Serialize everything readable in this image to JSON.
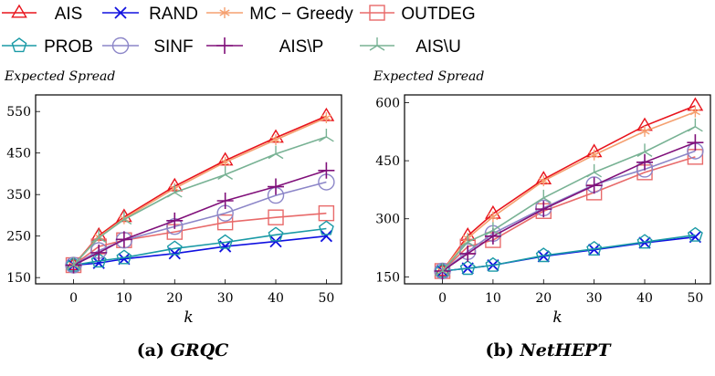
{
  "legend": [
    {
      "name": "AIS",
      "color": "#e8141c",
      "marker": "triangle"
    },
    {
      "name": "RAND",
      "color": "#1010e0",
      "marker": "x"
    },
    {
      "name": "MC − Greedy",
      "color": "#f5a070",
      "marker": "asterisk"
    },
    {
      "name": "OUTDEG",
      "color": "#e86a6a",
      "marker": "square"
    },
    {
      "name": "PROB",
      "color": "#1a9aa6",
      "marker": "pentagon"
    },
    {
      "name": "SINF",
      "color": "#8c86c8",
      "marker": "circle"
    },
    {
      "name": "AIS\\P",
      "color": "#80107a",
      "marker": "plus"
    },
    {
      "name": "AIS\\U",
      "color": "#78b294",
      "marker": "tri-y"
    }
  ],
  "chart_data": [
    {
      "type": "line",
      "caption_prefix": "(a)",
      "caption_name": "GRQC",
      "ylabel": "Expected Spread",
      "xlabel": "k",
      "x": [
        0,
        5,
        10,
        20,
        30,
        40,
        50
      ],
      "xticks": [
        0,
        10,
        20,
        30,
        40,
        50
      ],
      "yticks": [
        150,
        250,
        350,
        450,
        550
      ],
      "ylim": [
        135,
        590
      ],
      "xlim": [
        -7.5,
        53
      ],
      "grid": false,
      "legend_placement": "top",
      "series": [
        {
          "name": "AIS",
          "values": [
            180,
            251,
            296,
            370,
            432,
            487,
            539
          ]
        },
        {
          "name": "RAND",
          "values": [
            180,
            185,
            195,
            208,
            225,
            237,
            250
          ]
        },
        {
          "name": "MC − Greedy",
          "values": [
            180,
            248,
            292,
            365,
            428,
            482,
            535
          ]
        },
        {
          "name": "OUTDEG",
          "values": [
            180,
            225,
            240,
            260,
            283,
            295,
            305
          ]
        },
        {
          "name": "PROB",
          "values": [
            180,
            190,
            198,
            220,
            235,
            253,
            268
          ]
        },
        {
          "name": "SINF",
          "values": [
            180,
            215,
            240,
            273,
            305,
            348,
            380
          ]
        },
        {
          "name": "AIS\\P",
          "values": [
            180,
            210,
            242,
            287,
            335,
            369,
            408
          ]
        },
        {
          "name": "AIS\\U",
          "values": [
            180,
            246,
            290,
            355,
            398,
            448,
            489
          ]
        }
      ]
    },
    {
      "type": "line",
      "caption_prefix": "(b)",
      "caption_name": "NetHEPT",
      "ylabel": "Expected Spread",
      "xlabel": "k",
      "x": [
        0,
        5,
        10,
        20,
        30,
        40,
        50
      ],
      "xticks": [
        0,
        10,
        20,
        30,
        40,
        50
      ],
      "yticks": [
        150,
        300,
        450,
        600
      ],
      "ylim": [
        132,
        620
      ],
      "xlim": [
        -7.5,
        53
      ],
      "grid": false,
      "legend_placement": "top",
      "series": [
        {
          "name": "AIS",
          "values": [
            165,
            256,
            313,
            402,
            472,
            540,
            592
          ]
        },
        {
          "name": "RAND",
          "values": [
            165,
            172,
            180,
            203,
            220,
            238,
            253
          ]
        },
        {
          "name": "MC − Greedy",
          "values": [
            165,
            250,
            305,
            398,
            465,
            526,
            576
          ]
        },
        {
          "name": "OUTDEG",
          "values": [
            165,
            228,
            245,
            320,
            368,
            420,
            460
          ]
        },
        {
          "name": "PROB",
          "values": [
            165,
            172,
            180,
            205,
            222,
            240,
            258
          ]
        },
        {
          "name": "SINF",
          "values": [
            165,
            215,
            262,
            328,
            388,
            428,
            475
          ]
        },
        {
          "name": "AIS\\P",
          "values": [
            165,
            210,
            255,
            325,
            386,
            446,
            497
          ]
        },
        {
          "name": "AIS\\U",
          "values": [
            165,
            240,
            270,
            354,
            420,
            473,
            538
          ]
        }
      ]
    }
  ]
}
